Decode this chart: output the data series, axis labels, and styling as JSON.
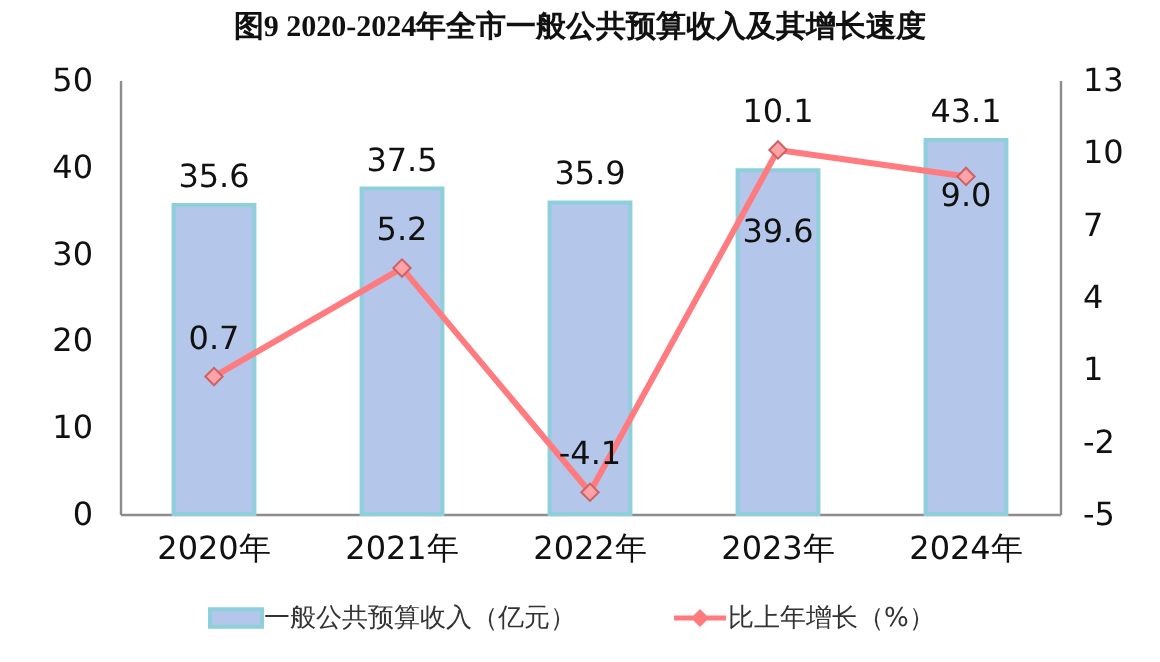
{
  "chart_data": {
    "type": "bar",
    "title": "图9 2020-2024年全市一般公共预算收入及其增长速度",
    "categories": [
      "2020年",
      "2021年",
      "2022年",
      "2023年",
      "2024年"
    ],
    "series": [
      {
        "name": "一般公共预算收入（亿元）",
        "color": "#b4c7eb",
        "values": [
          35.6,
          37.5,
          35.9,
          39.6,
          43.1
        ]
      },
      {
        "name": "比上年增长（%）",
        "type": "line",
        "axis": "y2",
        "color": "#ff7b80",
        "values": [
          0.7,
          5.2,
          -4.1,
          10.1,
          9.0
        ],
        "value_labels": [
          "0.7",
          "5.2",
          "-4.1",
          "10.1",
          "9.0"
        ]
      }
    ],
    "ylim": [
      0,
      50
    ],
    "yticks": [
      0,
      10,
      20,
      30,
      40,
      50
    ],
    "y2lim": [
      -5,
      13
    ],
    "y2ticks": [
      -5,
      -2,
      1,
      4,
      7,
      10,
      13
    ],
    "data_labels": true,
    "marker": "diamond",
    "line_style": "solid",
    "legend": "bottom",
    "grid": false
  }
}
